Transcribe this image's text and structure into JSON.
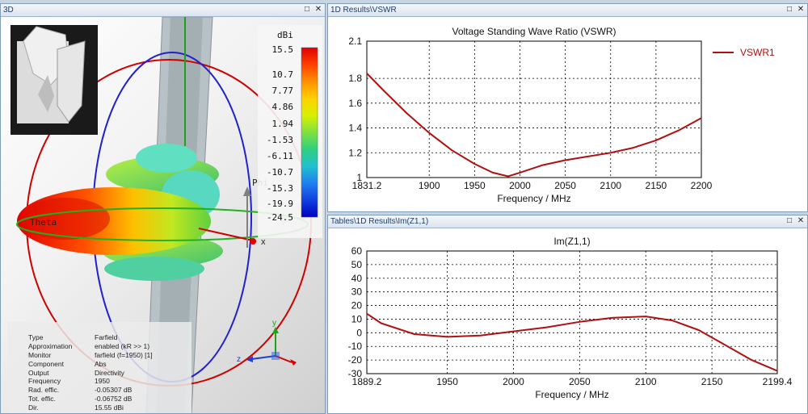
{
  "panes": {
    "view3d": {
      "title": "3D"
    },
    "vswr": {
      "title": "1D Results\\VSWR"
    },
    "imz": {
      "title": "Tables\\1D Results\\Im(Z1,1)"
    }
  },
  "window_buttons": {
    "restore": "□",
    "close": "✕"
  },
  "colorbar": {
    "unit": "dBi",
    "ticks": [
      "15.5",
      "10.7",
      "7.77",
      "4.86",
      "1.94",
      "-1.53",
      "-6.11",
      "-10.7",
      "-15.3",
      "-19.9",
      "-24.5"
    ],
    "colors": [
      "#e00000",
      "#ff4000",
      "#ff9000",
      "#ffd000",
      "#d8f000",
      "#80e040",
      "#30d080",
      "#20c0d0",
      "#2080f0",
      "#1040e0",
      "#0000c0"
    ]
  },
  "axis_labels_3d": {
    "theta": "Theta",
    "phi": "Phi",
    "x": "x",
    "y": "y",
    "z": "z"
  },
  "farfield_info": [
    {
      "key": "Type",
      "value": "Farfield"
    },
    {
      "key": "Approximation",
      "value": "enabled (kR >> 1)"
    },
    {
      "key": "Monitor",
      "value": "farfield (f=1950) [1]"
    },
    {
      "key": "Component",
      "value": "Abs"
    },
    {
      "key": "Output",
      "value": "Directivity"
    },
    {
      "key": "Frequency",
      "value": "1950"
    },
    {
      "key": "Rad. effic.",
      "value": "-0.05307 dB"
    },
    {
      "key": "Tot. effic.",
      "value": "-0.06752 dB"
    },
    {
      "key": "Dir.",
      "value": "15.55 dBi"
    }
  ],
  "chart_data": [
    {
      "type": "line",
      "title": "Voltage Standing Wave Ratio (VSWR)",
      "xlabel": "Frequency / MHz",
      "ylabel": "",
      "xlim": [
        1831.2,
        2200
      ],
      "ylim": [
        1,
        2.1
      ],
      "xticks": [
        1831.2,
        1900,
        1950,
        2000,
        2050,
        2100,
        2150,
        2200
      ],
      "yticks": [
        1,
        1.2,
        1.4,
        1.6,
        1.8,
        2.1
      ],
      "grid": true,
      "legend": "right",
      "series": [
        {
          "name": "VSWR1",
          "color": "#b01010",
          "x": [
            1831.2,
            1850,
            1875,
            1900,
            1925,
            1950,
            1970,
            1987,
            2000,
            2025,
            2050,
            2075,
            2100,
            2125,
            2150,
            2175,
            2200
          ],
          "y": [
            1.84,
            1.7,
            1.52,
            1.36,
            1.22,
            1.11,
            1.04,
            1.01,
            1.04,
            1.1,
            1.14,
            1.17,
            1.2,
            1.24,
            1.3,
            1.38,
            1.48
          ]
        }
      ]
    },
    {
      "type": "line",
      "title": "Im(Z1,1)",
      "xlabel": "Frequency / MHz",
      "ylabel": "",
      "xlim": [
        1889.2,
        2199.4
      ],
      "ylim": [
        -30,
        60
      ],
      "xticks": [
        1889.2,
        1950,
        2000,
        2050,
        2100,
        2150,
        2199.4
      ],
      "yticks": [
        -30,
        -20,
        -10,
        0,
        10,
        20,
        30,
        40,
        50,
        60
      ],
      "grid": true,
      "series": [
        {
          "name": "",
          "color": "#b01010",
          "x": [
            1889.2,
            1900,
            1925,
            1950,
            1975,
            2000,
            2025,
            2050,
            2075,
            2100,
            2120,
            2140,
            2160,
            2180,
            2199.4
          ],
          "y": [
            14,
            7,
            -1,
            -3,
            -2,
            1,
            4,
            8,
            11,
            12,
            9,
            2,
            -9,
            -20,
            -28
          ]
        }
      ]
    }
  ]
}
